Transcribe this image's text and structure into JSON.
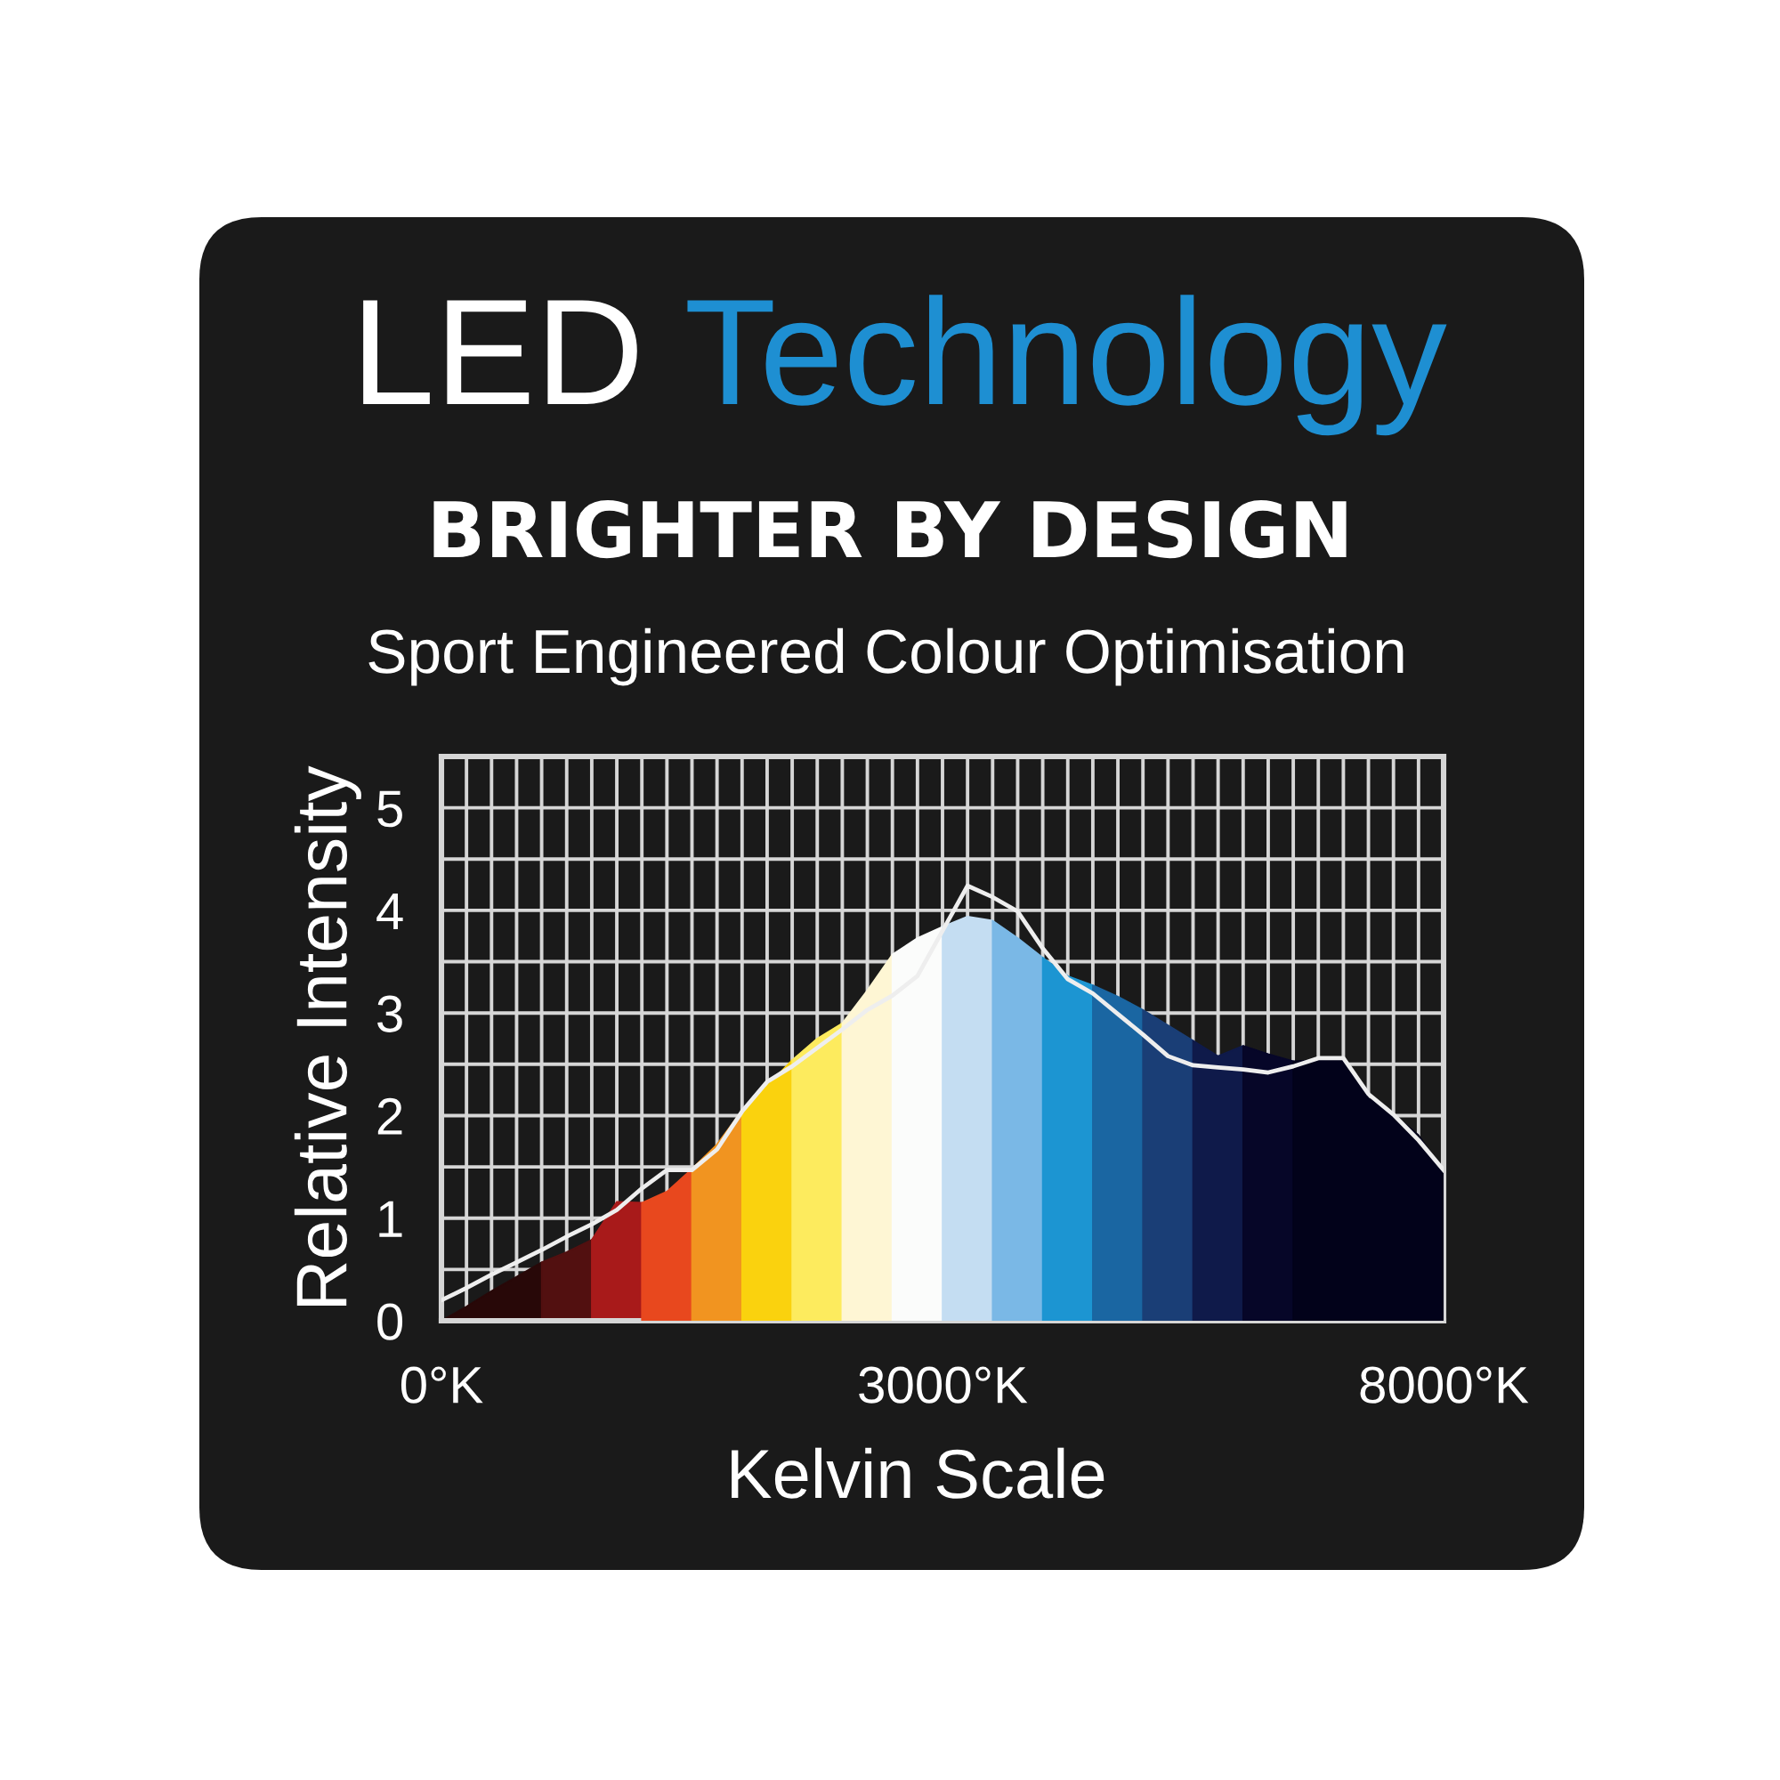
{
  "chart_data": {
    "type": "area",
    "title": "LED Technology",
    "subtitle": "BRIGHTER BY DESIGN",
    "annotations": [
      "Sport Engineered Colour Optimisation"
    ],
    "xlabel": "Kelvin Scale",
    "ylabel": "Relative Intensity",
    "categories": [
      "0°K",
      null,
      null,
      null,
      null,
      null,
      null,
      null,
      null,
      null,
      null,
      null,
      null,
      null,
      null,
      null,
      null,
      null,
      null,
      null,
      "3000°K",
      null,
      null,
      null,
      null,
      null,
      null,
      null,
      null,
      null,
      null,
      null,
      null,
      null,
      null,
      null,
      null,
      null,
      null,
      null,
      "8000°K"
    ],
    "ylim": [
      0,
      5.5
    ],
    "yticks": [
      0,
      {
        "value": 0.5,
        "label": null
      },
      1,
      {
        "value": 1.5,
        "label": null
      },
      2,
      {
        "value": 2.5,
        "label": null
      },
      3,
      {
        "value": 3.5,
        "label": null
      },
      4,
      {
        "value": 4.5,
        "label": null
      },
      5,
      {
        "value": 5.5,
        "label": null
      }
    ],
    "grid": true,
    "series": [
      {
        "color": "#280808",
        "values": [
          0,
          0.14,
          0.29,
          0.43,
          0.57,
          null,
          null,
          null,
          null,
          null,
          null,
          null,
          null,
          null,
          null,
          null,
          null,
          null,
          null,
          null,
          null,
          null,
          null,
          null,
          null,
          null,
          null,
          null,
          null,
          null,
          null,
          null,
          null,
          null,
          null,
          null,
          null,
          null,
          null,
          null,
          null
        ]
      },
      {
        "color": "#521010",
        "values": [
          null,
          null,
          null,
          null,
          0.57,
          0.67,
          0.79,
          null,
          null,
          null,
          null,
          null,
          null,
          null,
          null,
          null,
          null,
          null,
          null,
          null,
          null,
          null,
          null,
          null,
          null,
          null,
          null,
          null,
          null,
          null,
          null,
          null,
          null,
          null,
          null,
          null,
          null,
          null,
          null,
          null,
          null
        ]
      },
      {
        "color": "#a81a1a",
        "values": [
          null,
          null,
          null,
          null,
          null,
          null,
          0.79,
          1.16,
          1.15,
          null,
          null,
          null,
          null,
          null,
          null,
          null,
          null,
          null,
          null,
          null,
          null,
          null,
          null,
          null,
          null,
          null,
          null,
          null,
          null,
          null,
          null,
          null,
          null,
          null,
          null,
          null,
          null,
          null,
          null,
          null,
          null
        ]
      },
      {
        "color": "#e8481e",
        "values": [
          null,
          null,
          null,
          null,
          null,
          null,
          null,
          null,
          1.15,
          1.26,
          1.48,
          null,
          null,
          null,
          null,
          null,
          null,
          null,
          null,
          null,
          null,
          null,
          null,
          null,
          null,
          null,
          null,
          null,
          null,
          null,
          null,
          null,
          null,
          null,
          null,
          null,
          null,
          null,
          null,
          null,
          null
        ]
      },
      {
        "color": "#f19420",
        "values": [
          null,
          null,
          null,
          null,
          null,
          null,
          null,
          null,
          null,
          null,
          1.48,
          1.72,
          2.05,
          null,
          null,
          null,
          null,
          null,
          null,
          null,
          null,
          null,
          null,
          null,
          null,
          null,
          null,
          null,
          null,
          null,
          null,
          null,
          null,
          null,
          null,
          null,
          null,
          null,
          null,
          null,
          null
        ]
      },
      {
        "color": "#fad20e",
        "values": [
          null,
          null,
          null,
          null,
          null,
          null,
          null,
          null,
          null,
          null,
          null,
          null,
          2.05,
          2.29,
          2.54,
          null,
          null,
          null,
          null,
          null,
          null,
          null,
          null,
          null,
          null,
          null,
          null,
          null,
          null,
          null,
          null,
          null,
          null,
          null,
          null,
          null,
          null,
          null,
          null,
          null,
          null
        ]
      },
      {
        "color": "#fdeb5e",
        "values": [
          null,
          null,
          null,
          null,
          null,
          null,
          null,
          null,
          null,
          null,
          null,
          null,
          null,
          null,
          2.54,
          2.75,
          2.9,
          null,
          null,
          null,
          null,
          null,
          null,
          null,
          null,
          null,
          null,
          null,
          null,
          null,
          null,
          null,
          null,
          null,
          null,
          null,
          null,
          null,
          null,
          null,
          null
        ]
      },
      {
        "color": "#fef6d4",
        "values": [
          null,
          null,
          null,
          null,
          null,
          null,
          null,
          null,
          null,
          null,
          null,
          null,
          null,
          null,
          null,
          null,
          2.9,
          3.22,
          3.57,
          null,
          null,
          null,
          null,
          null,
          null,
          null,
          null,
          null,
          null,
          null,
          null,
          null,
          null,
          null,
          null,
          null,
          null,
          null,
          null,
          null,
          null
        ]
      },
      {
        "color": "#fbfcfb",
        "values": [
          null,
          null,
          null,
          null,
          null,
          null,
          null,
          null,
          null,
          null,
          null,
          null,
          null,
          null,
          null,
          null,
          null,
          null,
          3.57,
          3.73,
          3.84,
          null,
          null,
          null,
          null,
          null,
          null,
          null,
          null,
          null,
          null,
          null,
          null,
          null,
          null,
          null,
          null,
          null,
          null,
          null,
          null
        ]
      },
      {
        "color": "#c4ddf2",
        "values": [
          null,
          null,
          null,
          null,
          null,
          null,
          null,
          null,
          null,
          null,
          null,
          null,
          null,
          null,
          null,
          null,
          null,
          null,
          null,
          null,
          3.84,
          3.94,
          3.9,
          null,
          null,
          null,
          null,
          null,
          null,
          null,
          null,
          null,
          null,
          null,
          null,
          null,
          null,
          null,
          null,
          null,
          null
        ]
      },
      {
        "color": "#7ab8e6",
        "values": [
          null,
          null,
          null,
          null,
          null,
          null,
          null,
          null,
          null,
          null,
          null,
          null,
          null,
          null,
          null,
          null,
          null,
          null,
          null,
          null,
          null,
          null,
          3.9,
          3.73,
          3.54,
          null,
          null,
          null,
          null,
          null,
          null,
          null,
          null,
          null,
          null,
          null,
          null,
          null,
          null,
          null,
          null
        ]
      },
      {
        "color": "#1c95d2",
        "values": [
          null,
          null,
          null,
          null,
          null,
          null,
          null,
          null,
          null,
          null,
          null,
          null,
          null,
          null,
          null,
          null,
          null,
          null,
          null,
          null,
          null,
          null,
          null,
          null,
          3.54,
          3.36,
          3.27,
          null,
          null,
          null,
          null,
          null,
          null,
          null,
          null,
          null,
          null,
          null,
          null,
          null,
          null
        ]
      },
      {
        "color": "#1a66a2",
        "values": [
          null,
          null,
          null,
          null,
          null,
          null,
          null,
          null,
          null,
          null,
          null,
          null,
          null,
          null,
          null,
          null,
          null,
          null,
          null,
          null,
          null,
          null,
          null,
          null,
          null,
          null,
          3.27,
          3.16,
          3.03,
          null,
          null,
          null,
          null,
          null,
          null,
          null,
          null,
          null,
          null,
          null,
          null
        ]
      },
      {
        "color": "#1a3e76",
        "values": [
          null,
          null,
          null,
          null,
          null,
          null,
          null,
          null,
          null,
          null,
          null,
          null,
          null,
          null,
          null,
          null,
          null,
          null,
          null,
          null,
          null,
          null,
          null,
          null,
          null,
          null,
          null,
          null,
          3.03,
          2.88,
          2.73,
          null,
          null,
          null,
          null,
          null,
          null,
          null,
          null,
          null,
          null
        ]
      },
      {
        "color": "#0f1a4a",
        "values": [
          null,
          null,
          null,
          null,
          null,
          null,
          null,
          null,
          null,
          null,
          null,
          null,
          null,
          null,
          null,
          null,
          null,
          null,
          null,
          null,
          null,
          null,
          null,
          null,
          null,
          null,
          null,
          null,
          null,
          null,
          2.73,
          2.58,
          2.68,
          null,
          null,
          null,
          null,
          null,
          null,
          null,
          null
        ]
      },
      {
        "color": "#060628",
        "values": [
          null,
          null,
          null,
          null,
          null,
          null,
          null,
          null,
          null,
          null,
          null,
          null,
          null,
          null,
          null,
          null,
          null,
          null,
          null,
          null,
          null,
          null,
          null,
          null,
          null,
          null,
          null,
          null,
          null,
          null,
          null,
          null,
          2.68,
          2.6,
          2.53,
          null,
          null,
          null,
          null,
          null,
          null
        ]
      },
      {
        "color": "#02021a",
        "values": [
          null,
          null,
          null,
          null,
          null,
          null,
          null,
          null,
          null,
          null,
          null,
          null,
          null,
          null,
          null,
          null,
          null,
          null,
          null,
          null,
          null,
          null,
          null,
          null,
          null,
          null,
          null,
          null,
          null,
          null,
          null,
          null,
          null,
          null,
          2.53,
          2.54,
          2.57,
          2.17,
          2.01,
          1.81,
          1.45
        ]
      },
      {
        "type": "line",
        "color": "#eeeeee",
        "values": [
          0.2,
          0.32,
          0.45,
          0.57,
          0.69,
          0.82,
          0.94,
          1.08,
          1.29,
          1.47,
          1.47,
          1.67,
          2.04,
          2.33,
          2.48,
          2.66,
          2.84,
          3.03,
          3.17,
          3.36,
          3.8,
          4.24,
          4.13,
          3.99,
          3.63,
          3.33,
          3.19,
          2.99,
          2.79,
          2.58,
          2.49,
          2.47,
          2.45,
          2.42,
          2.48,
          2.56,
          2.56,
          2.21,
          2.01,
          1.76,
          1.47
        ]
      }
    ]
  }
}
